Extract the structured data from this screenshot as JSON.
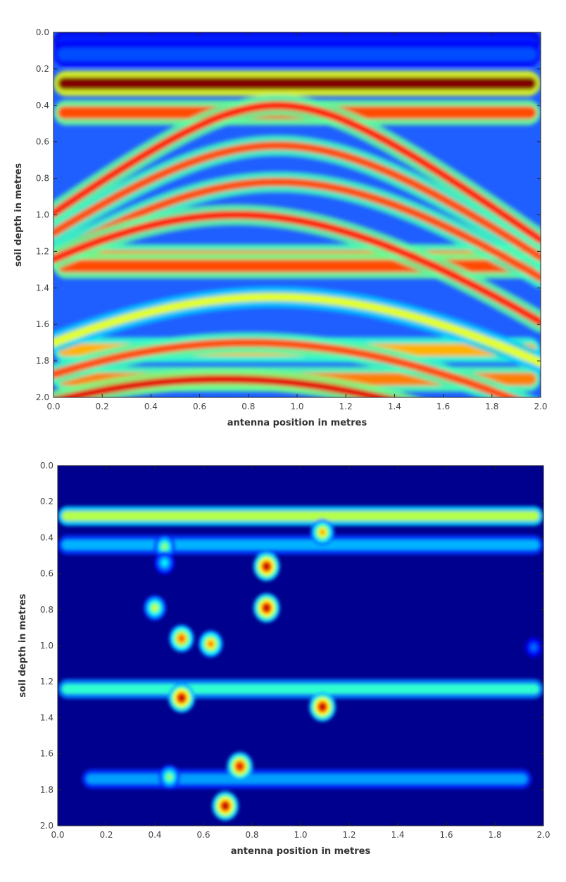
{
  "chart_data": [
    {
      "type": "heatmap",
      "title": "",
      "xlabel": "antenna position in metres",
      "ylabel": "soil depth in metres",
      "xlim": [
        0.0,
        2.0
      ],
      "ylim": [
        2.0,
        0.0
      ],
      "y_axis_inverted": true,
      "xticks": [
        "0.0",
        "0.2",
        "0.4",
        "0.6",
        "0.8",
        "1.0",
        "1.2",
        "1.4",
        "1.6",
        "1.8",
        "2.0"
      ],
      "yticks": [
        "0.0",
        "0.2",
        "0.4",
        "0.6",
        "0.8",
        "1.0",
        "1.2",
        "1.4",
        "1.6",
        "1.8",
        "2.0"
      ],
      "colormap": "jet",
      "colors": {
        "low": "#00008f",
        "mid": "#00ffff",
        "high": "#ff0000",
        "background": "#1f5fff"
      },
      "grid": false,
      "horizontal_bands": [
        {
          "depth": 0.05,
          "intensity": 0.15
        },
        {
          "depth": 0.12,
          "intensity": 0.2
        },
        {
          "depth": 0.28,
          "intensity": 1.0
        },
        {
          "depth": 0.44,
          "intensity": 0.8
        },
        {
          "depth": 1.23,
          "intensity": 0.75
        },
        {
          "depth": 1.28,
          "intensity": 0.8
        },
        {
          "depth": 1.74,
          "intensity": 0.7
        },
        {
          "depth": 1.9,
          "intensity": 0.75
        }
      ],
      "hyperbolas": [
        {
          "apex_x": 0.92,
          "apex_depth": 0.4,
          "intensity": 0.85
        },
        {
          "apex_x": 0.92,
          "apex_depth": 0.62,
          "intensity": 0.8
        },
        {
          "apex_x": 0.92,
          "apex_depth": 0.82,
          "intensity": 0.8
        },
        {
          "apex_x": 0.75,
          "apex_depth": 1.0,
          "intensity": 0.85
        },
        {
          "apex_x": 0.9,
          "apex_depth": 1.45,
          "intensity": 0.6
        },
        {
          "apex_x": 0.8,
          "apex_depth": 1.7,
          "intensity": 0.8
        },
        {
          "apex_x": 0.7,
          "apex_depth": 1.9,
          "intensity": 0.9
        }
      ]
    },
    {
      "type": "heatmap",
      "title": "",
      "xlabel": "antenna position in metres",
      "ylabel": "soil depth in metres",
      "xlim": [
        0.0,
        2.0
      ],
      "ylim": [
        2.0,
        0.0
      ],
      "y_axis_inverted": true,
      "xticks": [
        "0.0",
        "0.2",
        "0.4",
        "0.6",
        "0.8",
        "1.0",
        "1.2",
        "1.4",
        "1.6",
        "1.8",
        "2.0"
      ],
      "yticks": [
        "0.0",
        "0.2",
        "0.4",
        "0.6",
        "0.8",
        "1.0",
        "1.2",
        "1.4",
        "1.6",
        "1.8",
        "2.0"
      ],
      "colormap": "jet",
      "colors": {
        "low": "#00008f",
        "mid": "#00ffff",
        "high": "#ff0000",
        "background": "#00008f"
      },
      "grid": false,
      "horizontal_bands": [
        {
          "depth": 0.28,
          "x_start": 0.0,
          "x_end": 2.0,
          "intensity": 0.55
        },
        {
          "depth": 0.44,
          "x_start": 0.0,
          "x_end": 2.0,
          "intensity": 0.3
        },
        {
          "depth": 1.24,
          "x_start": 0.0,
          "x_end": 2.0,
          "intensity": 0.42
        },
        {
          "depth": 1.74,
          "x_start": 0.1,
          "x_end": 1.95,
          "intensity": 0.28
        }
      ],
      "hotspots": [
        {
          "x": 1.09,
          "depth": 0.37,
          "intensity": 0.75
        },
        {
          "x": 0.44,
          "depth": 0.45,
          "intensity": 0.55
        },
        {
          "x": 0.44,
          "depth": 0.54,
          "intensity": 0.4
        },
        {
          "x": 0.86,
          "depth": 0.56,
          "intensity": 1.0
        },
        {
          "x": 0.4,
          "depth": 0.79,
          "intensity": 0.62
        },
        {
          "x": 0.86,
          "depth": 0.79,
          "intensity": 1.0
        },
        {
          "x": 0.51,
          "depth": 0.96,
          "intensity": 0.85
        },
        {
          "x": 0.63,
          "depth": 0.99,
          "intensity": 0.8
        },
        {
          "x": 1.96,
          "depth": 1.01,
          "intensity": 0.25
        },
        {
          "x": 0.51,
          "depth": 1.29,
          "intensity": 1.0
        },
        {
          "x": 1.09,
          "depth": 1.34,
          "intensity": 1.0
        },
        {
          "x": 0.46,
          "depth": 1.73,
          "intensity": 0.55
        },
        {
          "x": 0.75,
          "depth": 1.67,
          "intensity": 0.95
        },
        {
          "x": 0.69,
          "depth": 1.89,
          "intensity": 1.0
        }
      ]
    }
  ]
}
